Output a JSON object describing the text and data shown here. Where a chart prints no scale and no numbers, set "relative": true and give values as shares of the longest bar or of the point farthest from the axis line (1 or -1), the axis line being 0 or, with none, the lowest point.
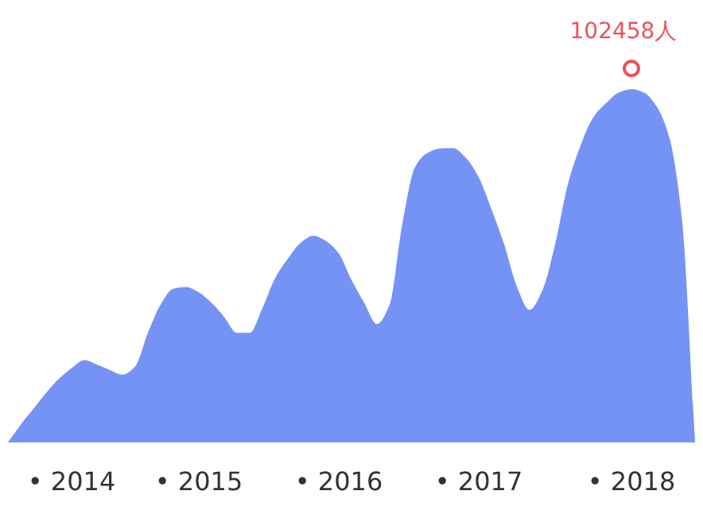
{
  "chart_data": {
    "type": "area",
    "relative": true,
    "categories": [
      null,
      null,
      null,
      null,
      null,
      "• 2014",
      null,
      null,
      null,
      null,
      null,
      null,
      null,
      null,
      null,
      "• 2015",
      null,
      null,
      null,
      null,
      null,
      null,
      null,
      null,
      null,
      null,
      "• 2016",
      null,
      null,
      null,
      null,
      null,
      null,
      null,
      null,
      null,
      null,
      "• 2017",
      null,
      null,
      null,
      null,
      null,
      null,
      null,
      null,
      null,
      null,
      null,
      "• 2018",
      null,
      null,
      null,
      null,
      null
    ],
    "series": [
      {
        "color": "#7592f5",
        "values": [
          0,
          0.05,
          0.095,
          0.14,
          0.18,
          0.21,
          0.233,
          0.22,
          0.205,
          0.192,
          0.215,
          0.31,
          0.39,
          0.435,
          0.44,
          0.425,
          0.395,
          0.355,
          0.31,
          0.31,
          0.38,
          0.465,
          0.52,
          0.565,
          0.585,
          0.57,
          0.535,
          0.46,
          0.395,
          0.335,
          0.39,
          0.62,
          0.78,
          0.82,
          0.832,
          0.833,
          0.805,
          0.75,
          0.66,
          0.56,
          0.441,
          0.375,
          0.43,
          0.56,
          0.73,
          0.84,
          0.92,
          0.96,
          0.99,
          1,
          0.99,
          0.95,
          0.86,
          0.62,
          0
        ]
      }
    ],
    "annotations": [
      {
        "text": "102458人",
        "x": "• 2018",
        "y": 1
      }
    ],
    "grid": false
  }
}
